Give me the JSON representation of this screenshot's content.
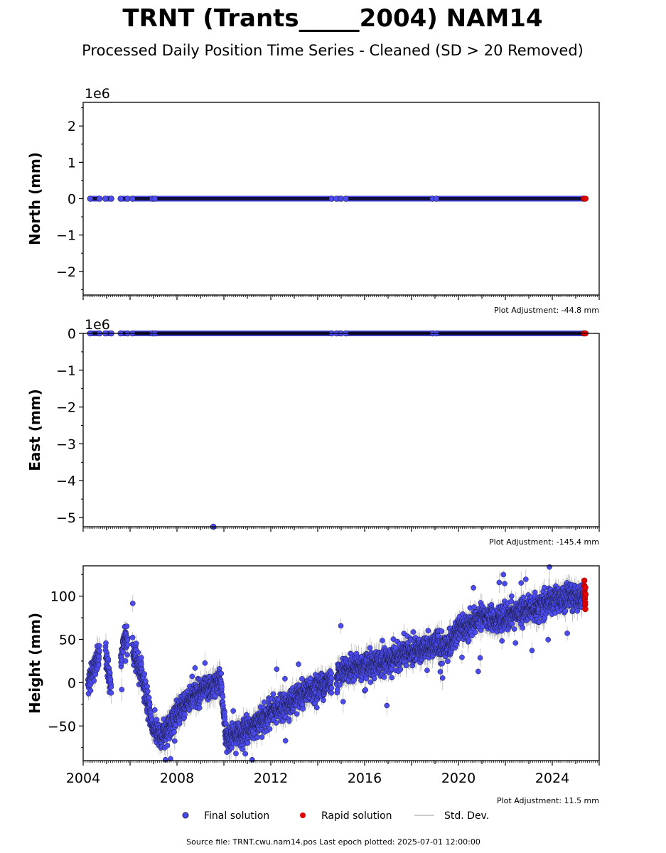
{
  "title": "TRNT (Trants_____2004) NAM14",
  "subtitle": "Processed Daily Position Time Series - Cleaned (SD > 20 Removed)",
  "footer": "Source file: TRNT.cwu.nam14.pos  Last epoch plotted: 2025-07-01 12:00:00",
  "colors": {
    "final": "#4b4bf0",
    "rapid": "#e00000",
    "stddev": "#bbbbbb"
  },
  "legend": [
    {
      "label": "Final solution",
      "kind": "final"
    },
    {
      "label": "Rapid solution",
      "kind": "rapid"
    },
    {
      "label": "Std. Dev.",
      "kind": "stddev"
    }
  ],
  "chart_data": [
    {
      "type": "scatter",
      "ylabel": "North (mm)",
      "offset_text": "1e6",
      "adjustment": "Plot Adjustment: -44.8 mm",
      "xlim": [
        2004.0,
        2026.0
      ],
      "ylim": [
        -2.65,
        2.65
      ],
      "yticks": [
        -2,
        -1,
        0,
        1,
        2
      ],
      "ytick_labels": [
        "−2",
        "−1",
        "0",
        "1",
        "2"
      ],
      "series": [
        {
          "kind": "final",
          "segments": [
            [
              2004.3,
              2004.7
            ],
            [
              2004.95,
              2005.2
            ],
            [
              2005.6,
              2005.9
            ],
            [
              2006.1,
              2006.95
            ],
            [
              2007.05,
              2014.6
            ],
            [
              2014.8,
              2015.0
            ],
            [
              2015.2,
              2018.9
            ],
            [
              2019.05,
              2025.35
            ]
          ]
        },
        {
          "kind": "rapid",
          "x": [
            2025.35,
            2025.42
          ],
          "y": [
            0,
            0
          ]
        }
      ]
    },
    {
      "type": "scatter",
      "ylabel": "East (mm)",
      "offset_text": "1e6",
      "adjustment": "Plot Adjustment: -145.4 mm",
      "xlim": [
        2004.0,
        2026.0
      ],
      "ylim": [
        -5.25,
        0.0
      ],
      "yticks": [
        -5,
        -4,
        -3,
        -2,
        -1,
        0
      ],
      "ytick_labels": [
        "−5",
        "−4",
        "−3",
        "−2",
        "−1",
        "0"
      ],
      "outliers": [
        {
          "x": 2009.55,
          "y": -5.25
        }
      ],
      "series": [
        {
          "kind": "final",
          "segments": [
            [
              2004.3,
              2004.7
            ],
            [
              2004.95,
              2005.2
            ],
            [
              2005.6,
              2005.9
            ],
            [
              2006.1,
              2006.95
            ],
            [
              2007.05,
              2014.6
            ],
            [
              2014.8,
              2015.0
            ],
            [
              2015.2,
              2018.9
            ],
            [
              2019.05,
              2025.35
            ]
          ]
        },
        {
          "kind": "rapid",
          "x": [
            2025.35,
            2025.42
          ],
          "y": [
            0,
            0
          ]
        }
      ]
    },
    {
      "type": "scatter",
      "ylabel": "Height (mm)",
      "offset_text": "",
      "adjustment": "Plot Adjustment: 11.5 mm",
      "xlim": [
        2004.0,
        2026.0
      ],
      "ylim": [
        -90,
        135
      ],
      "yticks": [
        -50,
        0,
        50,
        100
      ],
      "ytick_labels": [
        "−50",
        "0",
        "50",
        "100"
      ],
      "xticks": [
        2004,
        2008,
        2012,
        2016,
        2020,
        2024
      ],
      "xtick_labels": [
        "2004",
        "2008",
        "2012",
        "2016",
        "2020",
        "2024"
      ],
      "trend_knots": [
        [
          2004.2,
          0
        ],
        [
          2004.6,
          25
        ],
        [
          2004.9,
          45
        ],
        [
          2005.2,
          -10
        ],
        [
          2005.5,
          0
        ],
        [
          2005.75,
          55
        ],
        [
          2006.05,
          40
        ],
        [
          2006.5,
          10
        ],
        [
          2006.95,
          -50
        ],
        [
          2007.3,
          -65
        ],
        [
          2008.0,
          -35
        ],
        [
          2008.5,
          -20
        ],
        [
          2009.0,
          -10
        ],
        [
          2009.5,
          -5
        ],
        [
          2009.85,
          5
        ],
        [
          2010.1,
          -65
        ],
        [
          2010.5,
          -60
        ],
        [
          2011.0,
          -55
        ],
        [
          2011.5,
          -45
        ],
        [
          2012.0,
          -35
        ],
        [
          2013.0,
          -20
        ],
        [
          2014.0,
          -5
        ],
        [
          2014.8,
          5
        ],
        [
          2015.0,
          15
        ],
        [
          2016.0,
          20
        ],
        [
          2017.0,
          25
        ],
        [
          2018.0,
          35
        ],
        [
          2019.0,
          45
        ],
        [
          2019.5,
          40
        ],
        [
          2020.0,
          60
        ],
        [
          2021.0,
          75
        ],
        [
          2022.0,
          75
        ],
        [
          2023.0,
          85
        ],
        [
          2024.0,
          95
        ],
        [
          2025.35,
          100
        ]
      ],
      "gaps": [
        [
          2004.7,
          2004.95
        ],
        [
          2005.2,
          2005.6
        ],
        [
          2005.9,
          2006.1
        ],
        [
          2014.6,
          2014.8
        ]
      ],
      "noise_sd": 10,
      "series": [
        {
          "kind": "final"
        },
        {
          "kind": "rapid",
          "x": [
            2025.37,
            2025.37,
            2025.38,
            2025.38,
            2025.39,
            2025.39,
            2025.4,
            2025.4,
            2025.41,
            2025.41,
            2025.42
          ],
          "y": [
            118,
            112,
            107,
            104,
            100,
            97,
            93,
            90,
            110,
            85,
            102
          ]
        }
      ]
    }
  ]
}
